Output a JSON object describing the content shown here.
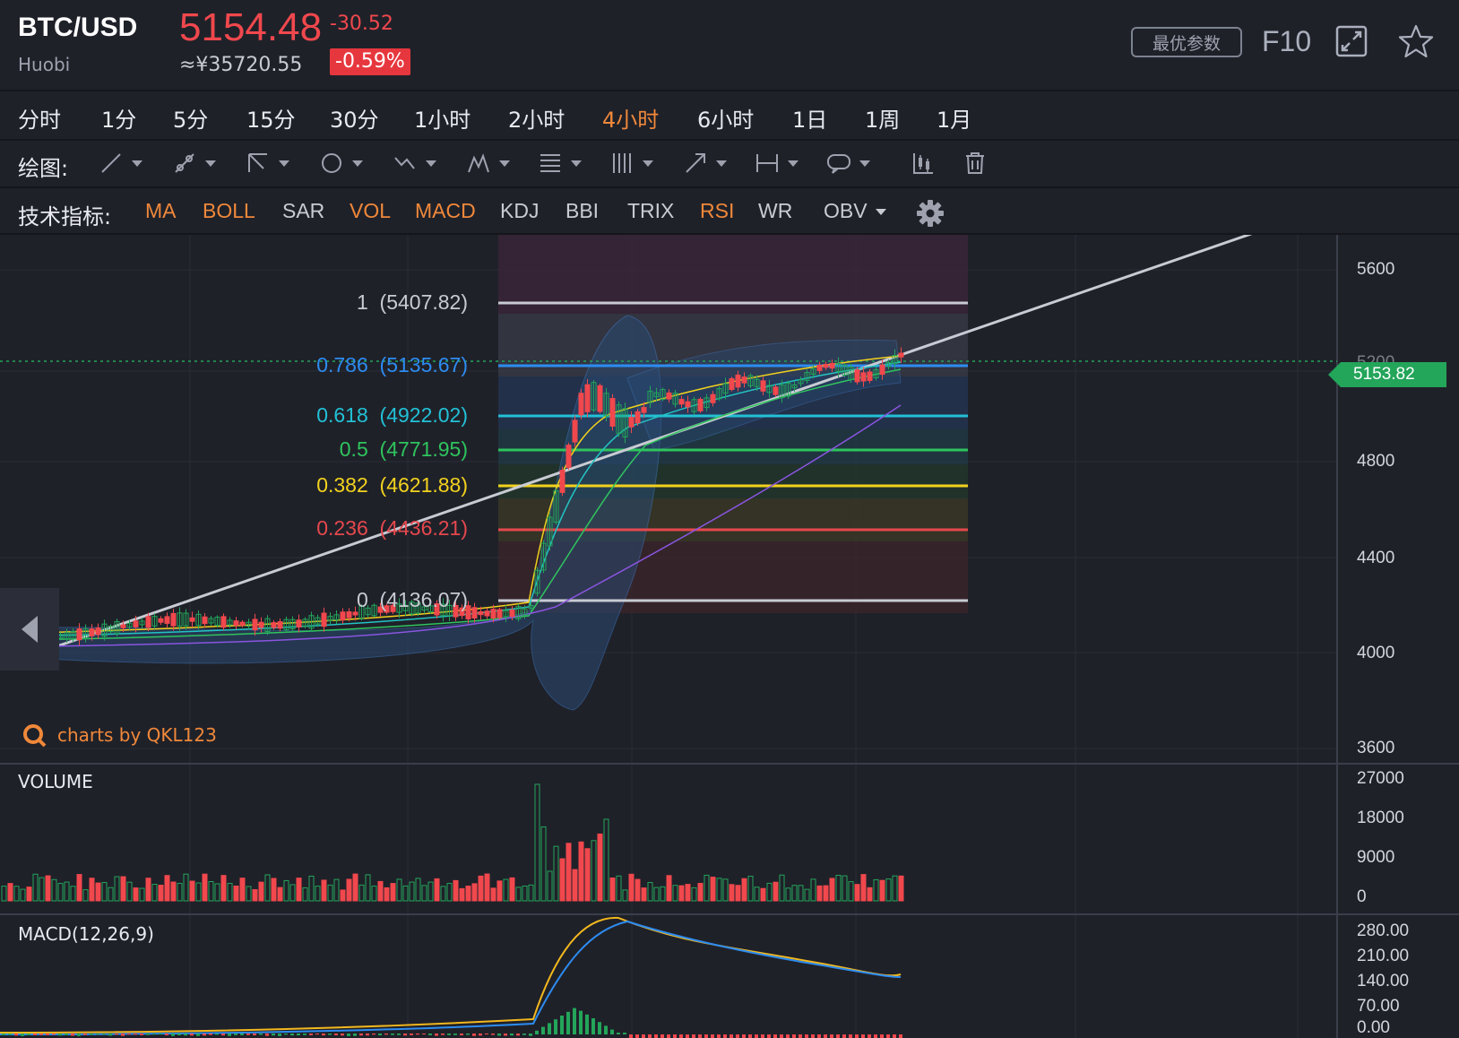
{
  "header": {
    "pair": "BTC/USD",
    "exchange": "Huobi",
    "price": "5154.48",
    "price_cny": "≈¥35720.55",
    "change": "-30.52",
    "change_pct": "-0.59%",
    "best_params": "最优参数",
    "f10": "F10",
    "icons": [
      "expand-icon",
      "star-icon"
    ]
  },
  "timeframes": {
    "items": [
      "分时",
      "1分",
      "5分",
      "15分",
      "30分",
      "1小时",
      "2小时",
      "4小时",
      "6小时",
      "1日",
      "1周",
      "1月"
    ],
    "active": "4小时"
  },
  "drawing": {
    "label": "绘图:",
    "tools": [
      "line-tool-icon",
      "ray-tool-icon",
      "channel-tool-icon",
      "ellipse-tool-icon",
      "wave-tool-icon",
      "pattern-tool-icon",
      "fib-tool-icon",
      "gann-tool-icon",
      "arrow-tool-icon",
      "range-tool-icon",
      "note-tool-icon"
    ],
    "extra_icons": [
      "candle-toggle-icon",
      "trash-icon"
    ]
  },
  "indicators": {
    "label": "技术指标:",
    "items": [
      {
        "label": "MA",
        "on": true
      },
      {
        "label": "BOLL",
        "on": true
      },
      {
        "label": "SAR",
        "on": false
      },
      {
        "label": "VOL",
        "on": true
      },
      {
        "label": "MACD",
        "on": true
      },
      {
        "label": "KDJ",
        "on": false
      },
      {
        "label": "BBI",
        "on": false
      },
      {
        "label": "TRIX",
        "on": false
      },
      {
        "label": "RSI",
        "on": true
      },
      {
        "label": "WR",
        "on": false
      },
      {
        "label": "OBV",
        "on": false
      }
    ],
    "settings_icon": "gear-icon"
  },
  "colors": {
    "up": "#23a55a",
    "down": "#f0484d",
    "accent": "#f0883a",
    "fib_1": "#c8cbd3",
    "fib_0786": "#2d8cf0",
    "fib_0618": "#22c1d6",
    "fib_05": "#2fc45e",
    "fib_0382": "#f2d21e",
    "fib_0236": "#e5484d",
    "fib_0": "#c8cbd3"
  },
  "price_chart": {
    "y_axis_ticks": [
      "5600",
      "5200",
      "4800",
      "4400",
      "4000",
      "3600"
    ],
    "last_price": "5153.82",
    "fib_levels": [
      {
        "ratio": "1",
        "price": "(5407.82)",
        "color": "#c8cbd3"
      },
      {
        "ratio": "0.786",
        "price": "(5135.67)",
        "color": "#2d8cf0"
      },
      {
        "ratio": "0.618",
        "price": "(4922.02)",
        "color": "#22c1d6"
      },
      {
        "ratio": "0.5",
        "price": "(4771.95)",
        "color": "#2fc45e"
      },
      {
        "ratio": "0.382",
        "price": "(4621.88)",
        "color": "#f2d21e"
      },
      {
        "ratio": "0.236",
        "price": "(4436.21)",
        "color": "#e5484d"
      },
      {
        "ratio": "0",
        "price": "(4136.07)",
        "color": "#c8cbd3"
      }
    ],
    "watermark": "charts by QKL123"
  },
  "volume": {
    "title": "VOLUME",
    "y_axis_ticks": [
      "27000",
      "18000",
      "9000",
      "0"
    ]
  },
  "macd": {
    "title": "MACD(12,26,9)",
    "y_axis_ticks": [
      "280.00",
      "210.00",
      "140.00",
      "70.00",
      "0.00"
    ]
  }
}
